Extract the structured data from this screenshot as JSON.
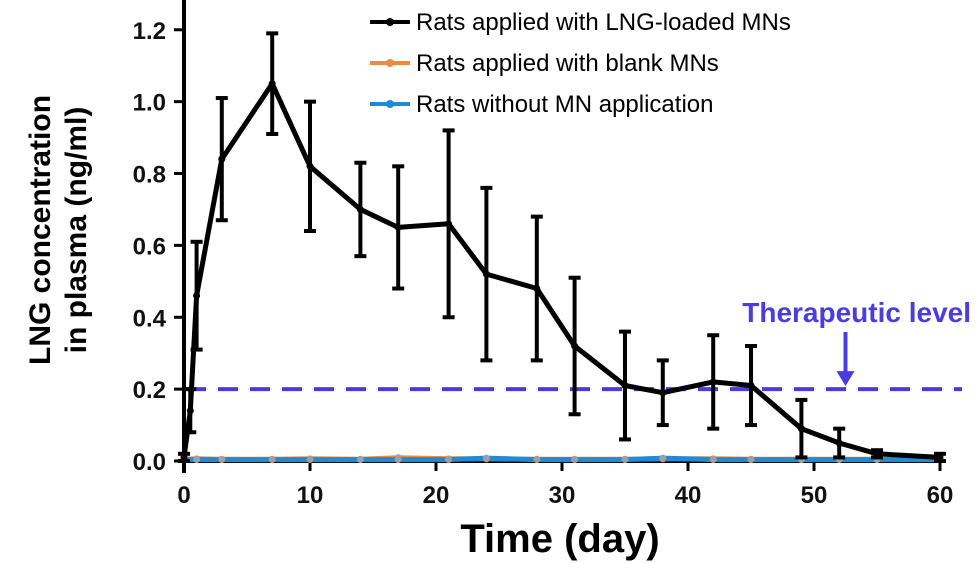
{
  "chart_data": {
    "type": "line",
    "xlabel": "Time (day)",
    "ylabel_lines": [
      "LNG concentration",
      "in plasma (ng/ml)"
    ],
    "xlim": [
      0,
      60
    ],
    "ylim": [
      0,
      1.25
    ],
    "xticks": [
      0,
      10,
      20,
      30,
      40,
      50,
      60
    ],
    "xtick_labels": [
      "0",
      "10",
      "20",
      "30",
      "40",
      "50",
      "60"
    ],
    "yticks": [
      0,
      0.2,
      0.4,
      0.6,
      0.8,
      1.0,
      1.2
    ],
    "ytick_labels": [
      "0.0",
      "0.2",
      "0.4",
      "0.6",
      "0.8",
      "1.0",
      "1.2"
    ],
    "grid": false,
    "legend_position": "top-right",
    "series": [
      {
        "name": "Rats applied with LNG-loaded MNs",
        "color": "#000000",
        "x": [
          0,
          0.5,
          1,
          3,
          7,
          10,
          14,
          17,
          21,
          24,
          28,
          31,
          35,
          38,
          42,
          45,
          49,
          52,
          55,
          60
        ],
        "y": [
          0.01,
          0.14,
          0.46,
          0.84,
          1.05,
          0.82,
          0.7,
          0.65,
          0.66,
          0.52,
          0.48,
          0.32,
          0.21,
          0.19,
          0.22,
          0.21,
          0.09,
          0.05,
          0.02,
          0.01
        ],
        "err": [
          0.01,
          0.06,
          0.15,
          0.17,
          0.14,
          0.18,
          0.13,
          0.17,
          0.26,
          0.24,
          0.2,
          0.19,
          0.15,
          0.09,
          0.13,
          0.11,
          0.08,
          0.04,
          0.01,
          0.01
        ]
      },
      {
        "name": "Rats applied with blank MNs",
        "color": "#f08a3c",
        "x": [
          0,
          1,
          3,
          7,
          10,
          14,
          17,
          21,
          24,
          28,
          31,
          35,
          38,
          42,
          45,
          49,
          52,
          55,
          60
        ],
        "y": [
          0.005,
          0.006,
          0.005,
          0.005,
          0.006,
          0.005,
          0.009,
          0.006,
          0.006,
          0.005,
          0.005,
          0.005,
          0.006,
          0.006,
          0.005,
          0.005,
          0.005,
          0.005,
          0.005
        ]
      },
      {
        "name": "Rats without MN application",
        "color": "#1f8ad6",
        "x": [
          0,
          1,
          3,
          7,
          10,
          14,
          17,
          21,
          24,
          28,
          31,
          35,
          38,
          42,
          45,
          49,
          52,
          55,
          60
        ],
        "y": [
          0.004,
          0.004,
          0.004,
          0.004,
          0.004,
          0.004,
          0.004,
          0.004,
          0.008,
          0.004,
          0.004,
          0.004,
          0.008,
          0.004,
          0.004,
          0.004,
          0.004,
          0.004,
          0.004
        ]
      }
    ],
    "reference_line": {
      "y": 0.2,
      "color": "#4a3ce0",
      "label": "Therapeutic level",
      "arrow_x": 52.5
    }
  }
}
